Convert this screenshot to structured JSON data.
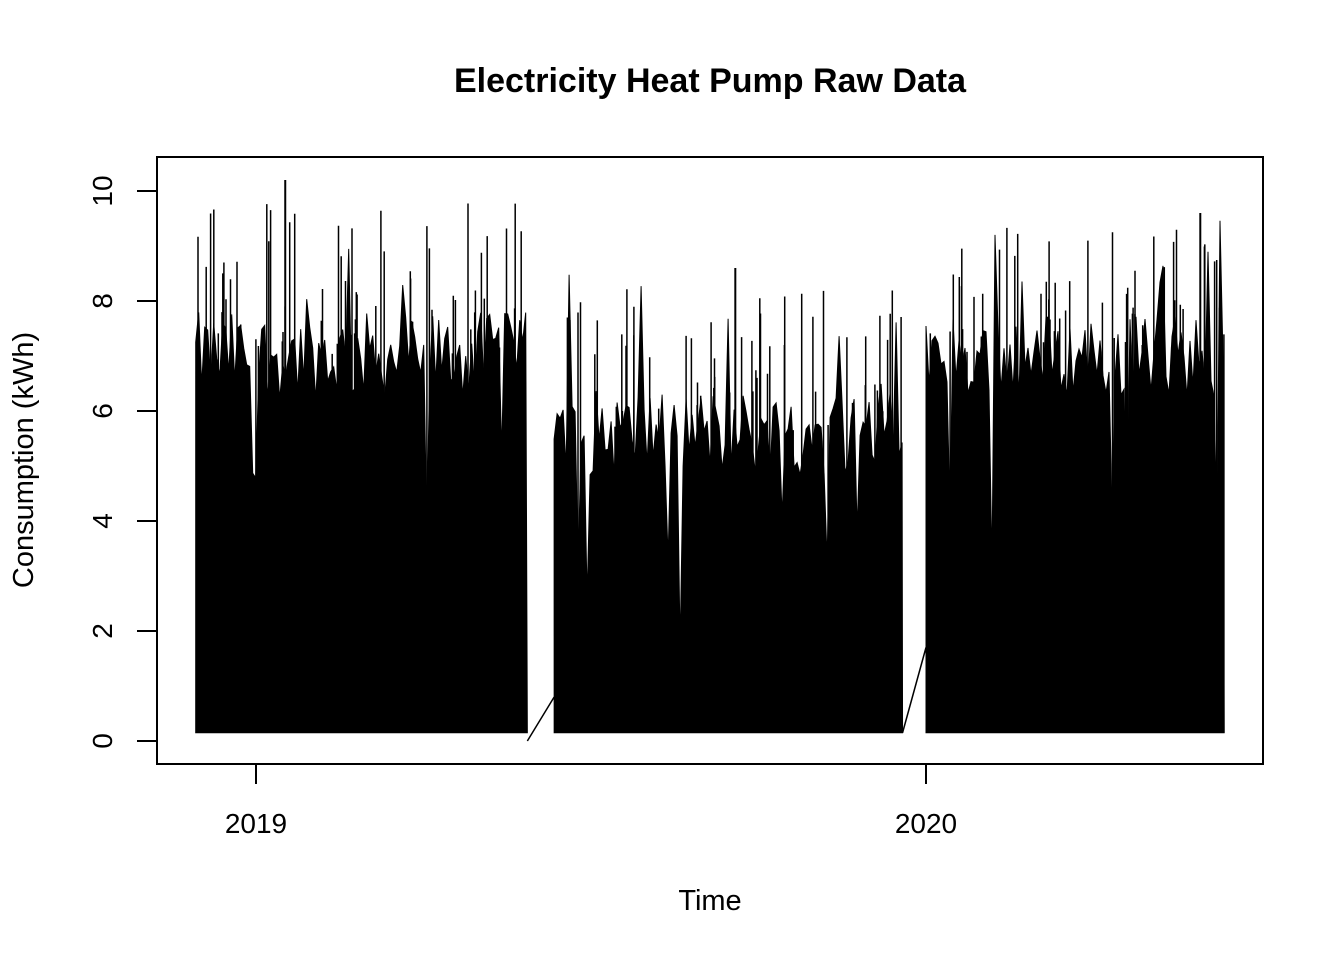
{
  "chart_data": {
    "type": "line",
    "title": "Electricity Heat Pump Raw Data",
    "xlabel": "Time",
    "ylabel": "Consumption (kWh)",
    "xlim": [
      2018.85,
      2020.5
    ],
    "ylim": [
      0,
      10.4
    ],
    "x_ticks": [
      2019,
      2020
    ],
    "x_tick_labels": [
      "2019",
      "2020"
    ],
    "y_ticks": [
      0,
      2,
      4,
      6,
      8,
      10
    ],
    "y_tick_labels": [
      "0",
      "2",
      "4",
      "6",
      "8",
      "10"
    ],
    "grid": false,
    "legend": "none",
    "line_color": "#000000",
    "segments": [
      {
        "start": 2018.91,
        "end": 2019.405,
        "baseline": 0.15,
        "typical_peak": 7.0,
        "max": 10.2
      },
      {
        "start": 2019.445,
        "end": 2019.965,
        "baseline": 0.15,
        "typical_peak": 5.6,
        "max": 8.6
      },
      {
        "start": 2020.0,
        "end": 2020.445,
        "baseline": 0.15,
        "typical_peak": 7.0,
        "max": 9.6
      }
    ],
    "gap_lines": [
      {
        "x": [
          2019.405,
          2019.445
        ],
        "y": [
          0.0,
          0.8
        ]
      },
      {
        "x": [
          2019.965,
          2020.0
        ],
        "y": [
          0.15,
          1.7
        ]
      }
    ]
  }
}
